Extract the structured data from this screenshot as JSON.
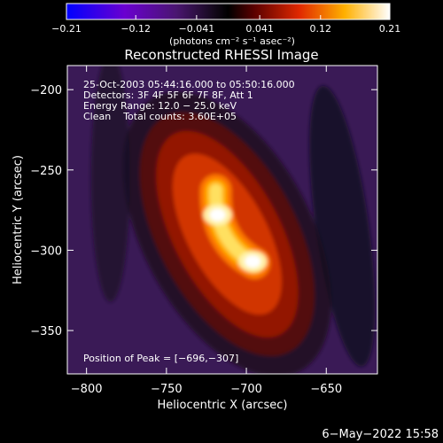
{
  "chart_data": {
    "type": "heatmap",
    "title": "Reconstructed RHESSI Image",
    "xlabel": "Heliocentric X (arcsec)",
    "ylabel": "Heliocentric Y (arcsec)",
    "xlim": [
      -812,
      -618
    ],
    "ylim": [
      -377,
      -185
    ],
    "x_ticks": [
      -800,
      -750,
      -700,
      -650
    ],
    "y_ticks": [
      -200,
      -250,
      -300,
      -350
    ],
    "x_tick_labels": [
      "−800",
      "−750",
      "−700",
      "−650"
    ],
    "y_tick_labels": [
      "−200",
      "−250",
      "−300",
      "−350"
    ],
    "colorbar": {
      "ticks": [
        -0.21,
        -0.12,
        -0.041,
        0.041,
        0.12,
        0.21
      ],
      "tick_labels": [
        "−0.21",
        "−0.12",
        "−0.041",
        "0.041",
        "0.12",
        "0.21"
      ],
      "range": [
        -0.21,
        0.21
      ],
      "unit_label": "(photons cm⁻² s⁻¹ asec⁻²)",
      "colormap": "rhessi-symmetric (blue-purple-black-red-yellow-white)"
    },
    "annotations": [
      "25-Oct-2003 05:44:16.000 to 05:50:16.000",
      "Detectors: 3F 4F 5F 6F 7F 8F, Att 1",
      "Energy Range: 12.0 − 25.0 keV",
      "Clean    Total counts: 3.60E+05"
    ],
    "peak_label": "Position of Peak = [−696,−307]",
    "peak": [
      -696,
      -307
    ],
    "sources": [
      {
        "x": -696,
        "y": -307,
        "peak": 0.21
      },
      {
        "x": -718,
        "y": -278,
        "peak": 0.19
      }
    ],
    "grid": false
  },
  "footer": {
    "timestamp": "6−May−2022 15:58"
  },
  "colors": {
    "background": "#000000",
    "foreground": "#ffffff",
    "background_purple": "#3a1a56"
  }
}
